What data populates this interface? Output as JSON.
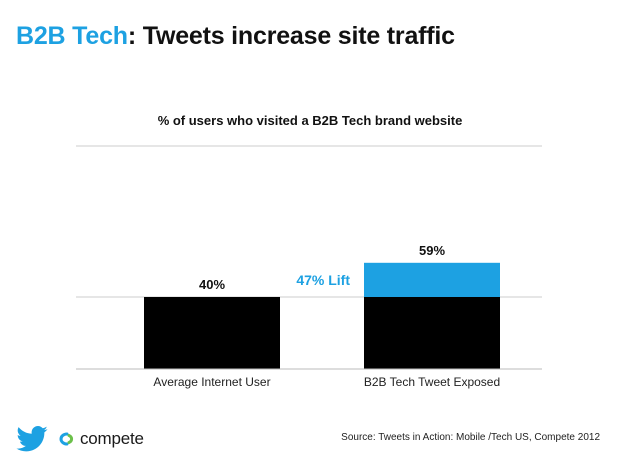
{
  "header": {
    "title_accent": "B2B Tech",
    "title_rest": ": Tweets increase site traffic"
  },
  "chart_data": {
    "type": "bar",
    "title": "% of users who visited a B2B Tech brand website",
    "categories": [
      "Average Internet User",
      "B2B Tech Tweet Exposed"
    ],
    "values": [
      40,
      59
    ],
    "data_labels": [
      "40%",
      "59%"
    ],
    "baseline_value": 40,
    "lift_label": "47% Lift",
    "ylim": [
      0,
      65
    ],
    "grid": true,
    "colors": {
      "bar": "#000000",
      "lift": "#1da1e2",
      "lift_text": "#1da1e2",
      "grid": "#cccccc"
    }
  },
  "footer": {
    "source": "Source: Tweets in Action: Mobile /Tech US, Compete 2012",
    "logo_twitter_icon": "twitter-bird-icon",
    "logo_compete_text": "compete"
  }
}
